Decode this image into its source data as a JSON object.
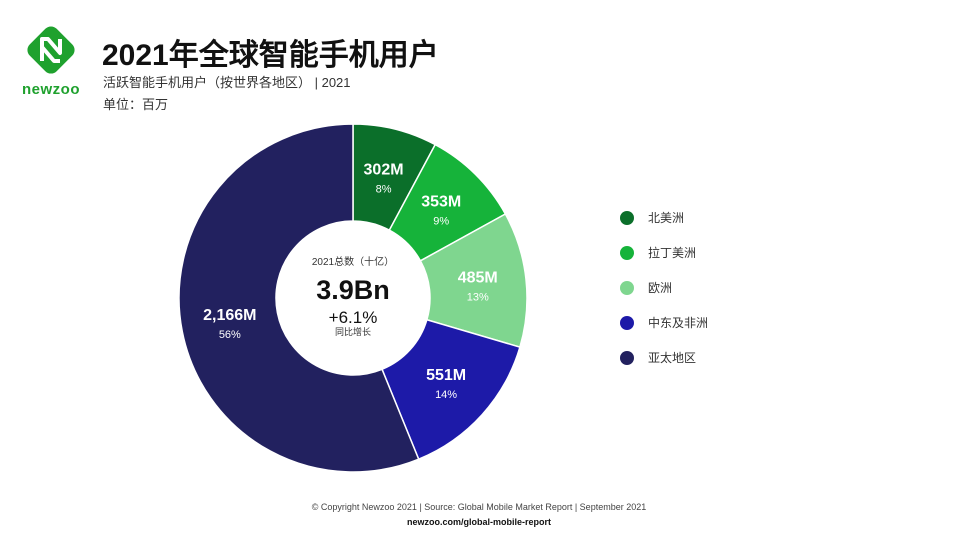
{
  "brand": {
    "name": "newzoo",
    "logo_colors": [
      "#1fa12e",
      "#0b5e1e"
    ]
  },
  "header": {
    "title": "2021年全球智能手机用户",
    "subtitle": "活跃智能手机用户（按世界各地区） | 2021",
    "unit": "单位：百万"
  },
  "chart_data": {
    "type": "pie",
    "donut": true,
    "categories": [
      "北美洲",
      "拉丁美洲",
      "欧洲",
      "中东及非洲",
      "亚太地区"
    ],
    "values": [
      302,
      353,
      485,
      551,
      2166
    ],
    "value_labels": [
      "302M",
      "353M",
      "485M",
      "551M",
      "2,166M"
    ],
    "percent_labels": [
      "8%",
      "9%",
      "13%",
      "14%",
      "56%"
    ],
    "colors": [
      "#0b6f2a",
      "#16b33a",
      "#7fd68f",
      "#1d1aa8",
      "#22215f"
    ],
    "center": {
      "caption": "2021总数（十亿）",
      "total": "3.9Bn",
      "growth": "+6.1%",
      "growth_caption": "同比增长"
    },
    "legend_position": "right"
  },
  "footer": {
    "copyright": "© Copyright Newzoo 2021 | Source: Global Mobile Market Report | September 2021",
    "url": "newzoo.com/global-mobile-report"
  }
}
